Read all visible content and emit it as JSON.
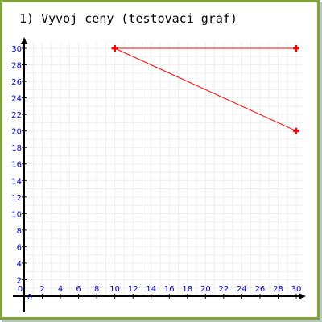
{
  "chart_data": {
    "type": "line",
    "title": "1) Vyvoj ceny (testovaci graf)",
    "xlabel": "",
    "ylabel": "",
    "x_ticks": [
      0,
      2,
      4,
      6,
      8,
      10,
      12,
      14,
      16,
      18,
      20,
      22,
      24,
      26,
      28,
      30
    ],
    "y_ticks": [
      0,
      2,
      4,
      6,
      8,
      10,
      12,
      14,
      16,
      18,
      20,
      22,
      24,
      26,
      28,
      30
    ],
    "x_tick_labels": [
      "0",
      "2",
      "4",
      "6",
      "8",
      "10",
      "12",
      "14",
      "16",
      "18",
      "20",
      "22",
      "24",
      "26",
      "28",
      "30"
    ],
    "y_tick_labels": [
      "0",
      "2",
      "4",
      "6",
      "8",
      "10",
      "12",
      "14",
      "16",
      "18",
      "20",
      "22",
      "24",
      "26",
      "28",
      "30"
    ],
    "xlim": [
      0,
      30
    ],
    "ylim": [
      0,
      30
    ],
    "grid": true,
    "series": [
      {
        "points": [
          [
            10,
            30
          ],
          [
            30,
            30
          ]
        ]
      },
      {
        "points": [
          [
            10,
            30
          ],
          [
            30,
            20
          ]
        ]
      }
    ]
  },
  "colors": {
    "border": "#7fa33a",
    "axis": "#000000",
    "tick_label": "#0000cc",
    "grid": "#eeeeee",
    "series": "#ff0000",
    "title": "#000000"
  }
}
